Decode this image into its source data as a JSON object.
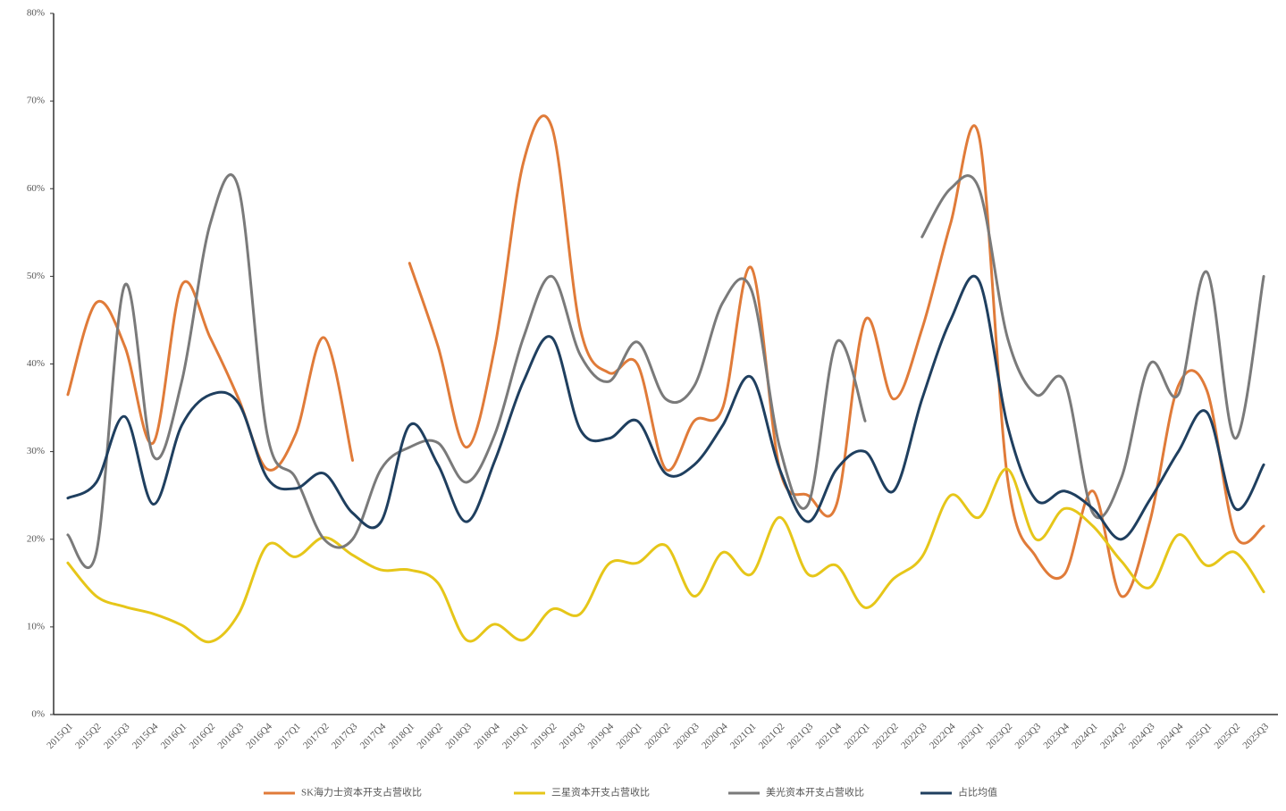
{
  "chart_data": {
    "type": "line",
    "categories": [
      "2015Q1",
      "2015Q2",
      "2015Q3",
      "2015Q4",
      "2016Q1",
      "2016Q2",
      "2016Q3",
      "2016Q4",
      "2017Q1",
      "2017Q2",
      "2017Q3",
      "2017Q4",
      "2018Q1",
      "2018Q2",
      "2018Q3",
      "2018Q4",
      "2019Q1",
      "2019Q2",
      "2019Q3",
      "2019Q4",
      "2020Q1",
      "2020Q2",
      "2020Q3",
      "2020Q4",
      "2021Q1",
      "2021Q2",
      "2021Q3",
      "2021Q4",
      "2022Q1",
      "2022Q2",
      "2022Q3",
      "2022Q4",
      "2023Q1",
      "2023Q2",
      "2023Q3",
      "2023Q4",
      "2024Q1",
      "2024Q2",
      "2024Q3",
      "2024Q4",
      "2025Q1",
      "2025Q2",
      "2025Q3"
    ],
    "series": [
      {
        "name": "SK海力士资本开支占营收比",
        "color": "#e07b39",
        "values": [
          36.5,
          47,
          42,
          31,
          49,
          43,
          36,
          28,
          32,
          43,
          29,
          null,
          51.5,
          42,
          30.5,
          42,
          63,
          67,
          44,
          39,
          40,
          28,
          33.5,
          35,
          51,
          28,
          25,
          24,
          45,
          36,
          44,
          56,
          66,
          27,
          18,
          16,
          25.5,
          13.5,
          22,
          37.5,
          37,
          20.5,
          21.5
        ]
      },
      {
        "name": "三星资本开支占营收比",
        "color": "#e6c619",
        "values": [
          17.3,
          13.5,
          12.3,
          11.5,
          10.2,
          8.3,
          11.5,
          19.3,
          18,
          20.2,
          18.2,
          16.5,
          16.5,
          15,
          8.5,
          10.3,
          8.5,
          12,
          11.5,
          17.2,
          17.3,
          19.3,
          13.5,
          18.5,
          16,
          22.5,
          16,
          17,
          12.2,
          15.5,
          18,
          25,
          22.5,
          28,
          20,
          23.5,
          21.5,
          17.5,
          14.5,
          20.5,
          17,
          18.5,
          14
        ]
      },
      {
        "name": "美光资本开支占营收比",
        "color": "#7a7a7a",
        "values": [
          20.5,
          18.5,
          49,
          29.5,
          38,
          56,
          60,
          32,
          27,
          20,
          20,
          28,
          30.5,
          31,
          26.5,
          32,
          43,
          50,
          41,
          38,
          42.5,
          36,
          37.5,
          47,
          48.5,
          30.5,
          24,
          42.5,
          33.5,
          null,
          54.5,
          60,
          60,
          43,
          36.5,
          38,
          23,
          27,
          40,
          36.5,
          50.5,
          31.5,
          50
        ]
      },
      {
        "name": "占比均值",
        "color": "#1f3f5f",
        "values": [
          24.7,
          26.5,
          34,
          24,
          33,
          36.5,
          35.5,
          27,
          25.8,
          27.5,
          23,
          22,
          33,
          28.5,
          22,
          29,
          38,
          43,
          32.5,
          31.5,
          33.5,
          27.5,
          28.5,
          33,
          38.5,
          28,
          22,
          28,
          30,
          25.5,
          36,
          45,
          49.5,
          33,
          24.5,
          25.5,
          23.5,
          20,
          24.5,
          30,
          34.5,
          23.5,
          28.5
        ]
      }
    ],
    "ylim": [
      0,
      80
    ],
    "yticks": [
      {
        "value": 0,
        "label": "0%"
      },
      {
        "value": 10,
        "label": "10%"
      },
      {
        "value": 20,
        "label": "20%"
      },
      {
        "value": 30,
        "label": "30%"
      },
      {
        "value": 40,
        "label": "40%"
      },
      {
        "value": 50,
        "label": "50%"
      },
      {
        "value": 60,
        "label": "60%"
      },
      {
        "value": 70,
        "label": "70%"
      },
      {
        "value": 80,
        "label": "80%"
      }
    ],
    "grid": false,
    "legend": "bottom"
  }
}
